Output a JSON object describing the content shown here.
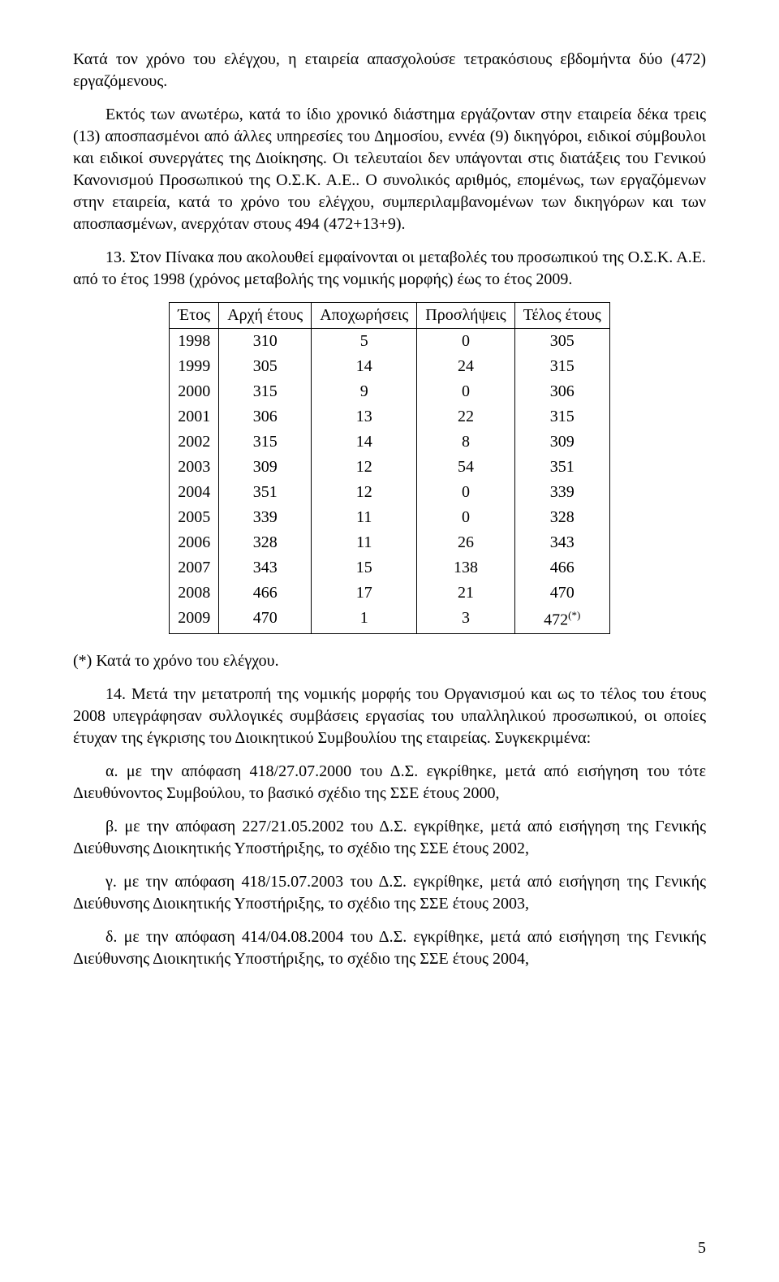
{
  "para1": "Κατά τον χρόνο του ελέγχου, η εταιρεία απασχολούσε τετρακόσιους εβδομήντα δύο (472) εργαζόμενους.",
  "para2": "Εκτός των ανωτέρω, κατά το ίδιο χρονικό διάστημα εργάζονταν στην εταιρεία δέκα τρεις (13) αποσπασμένοι από άλλες υπηρεσίες του Δημοσίου, εννέα (9) δικηγόροι, ειδικοί σύμβουλοι και ειδικοί συνεργάτες της Διοίκησης. Οι τελευταίοι δεν υπάγονται στις διατάξεις του Γενικού Κανονισμού Προσωπικού της Ο.Σ.Κ.  Α.Ε.. Ο συνολικός αριθμός, επομένως, των εργαζόμενων στην εταιρεία, κατά το χρόνο του ελέγχου, συμπεριλαμβανομένων των δικηγόρων και των αποσπασμένων, ανερχόταν στους 494 (472+13+9).",
  "para3": "13. Στον Πίνακα που ακολουθεί εμφαίνονται οι μεταβολές του προσωπικού της Ο.Σ.Κ.  Α.Ε. από το έτος 1998 (χρόνος μεταβολής της νομικής μορφής) έως το έτος 2009.",
  "table": {
    "headers": [
      "Έτος",
      "Αρχή έτους",
      "Αποχωρήσεις",
      "Προσλήψεις",
      "Τέλος έτους"
    ],
    "rows": [
      [
        "1998",
        "310",
        "5",
        "0",
        "305"
      ],
      [
        "1999",
        "305",
        "14",
        "24",
        "315"
      ],
      [
        "2000",
        "315",
        "9",
        "0",
        "306"
      ],
      [
        "2001",
        "306",
        "13",
        "22",
        "315"
      ],
      [
        "2002",
        "315",
        "14",
        "8",
        "309"
      ],
      [
        "2003",
        "309",
        "12",
        "54",
        "351"
      ],
      [
        "2004",
        "351",
        "12",
        "0",
        "339"
      ],
      [
        "2005",
        "339",
        "11",
        "0",
        "328"
      ],
      [
        "2006",
        "328",
        "11",
        "26",
        "343"
      ],
      [
        "2007",
        "343",
        "15",
        "138",
        "466"
      ],
      [
        "2008",
        "466",
        "17",
        "21",
        "470"
      ],
      [
        "2009",
        "470",
        "1",
        "3",
        "472"
      ]
    ],
    "last_note": "(*)"
  },
  "note": "(*) Κατά το χρόνο του ελέγχου.",
  "para4": "14. Μετά την μετατροπή της νομικής μορφής του Οργανισμού και ως το τέλος του έτους 2008 υπεγράφησαν συλλογικές συμβάσεις εργασίας του υπαλληλικού προσωπικού, οι οποίες έτυχαν της έγκρισης του Διοικητικού Συμβουλίου της εταιρείας. Συγκεκριμένα:",
  "line_a": "α. με την απόφαση  418/27.07.2000 του Δ.Σ. εγκρίθηκε, μετά από εισήγηση του τότε Διευθύνοντος Συμβούλου, το βασικό σχέδιο της ΣΣΕ έτους 2000,",
  "line_b": "β. με την απόφαση 227/21.05.2002 του Δ.Σ. εγκρίθηκε, μετά από εισήγηση της Γενικής Διεύθυνσης Διοικητικής Υποστήριξης,  το σχέδιο της ΣΣΕ έτους 2002,",
  "line_c": "γ. με την απόφαση 418/15.07.2003 του Δ.Σ. εγκρίθηκε, μετά από εισήγηση της Γενικής Διεύθυνσης Διοικητικής Υποστήριξης, το σχέδιο της ΣΣΕ έτους 2003,",
  "line_d": "δ. με την απόφαση 414/04.08.2004 του Δ.Σ. εγκρίθηκε, μετά από εισήγηση της Γενικής Διεύθυνσης Διοικητικής Υποστήριξης, το σχέδιο της ΣΣΕ έτους 2004,",
  "page_number": "5"
}
